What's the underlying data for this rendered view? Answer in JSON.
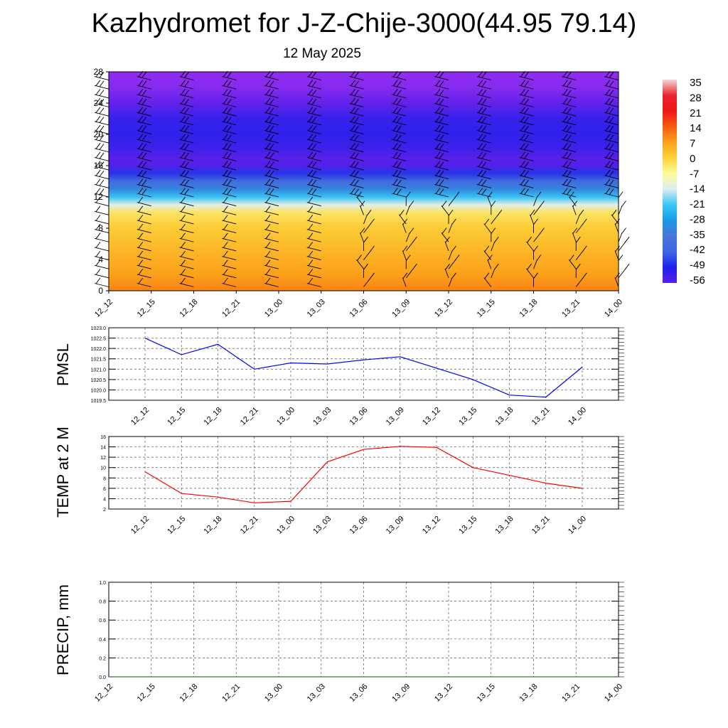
{
  "title": "Kazhydromet for J-Z-Chije-3000(44.95 79.14)",
  "subtitle": "12 May 2025",
  "chart_data": [
    {
      "type": "heatmap",
      "title": "",
      "x_labels": [
        "12_12",
        "12_15",
        "12_18",
        "12_21",
        "13_00",
        "13_03",
        "13_06",
        "13_09",
        "13_12",
        "13_15",
        "13_18",
        "13_21",
        "14_00"
      ],
      "y_ticks": [
        0,
        4,
        8,
        12,
        16,
        20,
        24,
        28
      ],
      "ylim": [
        0,
        28
      ],
      "colorbar_labels": [
        "35",
        "28",
        "21",
        "14",
        "7",
        "0",
        "-7",
        "-14",
        "-21",
        "-28",
        "-35",
        "-42",
        "-49",
        "-56"
      ],
      "colorbar_range": [
        -56,
        35
      ],
      "temperature_profile": [
        {
          "y": 0,
          "value": 10
        },
        {
          "y": 2,
          "value": 7
        },
        {
          "y": 4,
          "value": 5
        },
        {
          "y": 6,
          "value": 3
        },
        {
          "y": 8,
          "value": 1
        },
        {
          "y": 10,
          "value": -3
        },
        {
          "y": 11,
          "value": -13
        },
        {
          "y": 12,
          "value": -22
        },
        {
          "y": 13,
          "value": -32
        },
        {
          "y": 14,
          "value": -40
        },
        {
          "y": 15,
          "value": -47
        },
        {
          "y": 16,
          "value": -55
        },
        {
          "y": 17,
          "value": -56
        },
        {
          "y": 18,
          "value": -53
        },
        {
          "y": 20,
          "value": -51
        },
        {
          "y": 22,
          "value": -52
        },
        {
          "y": 24,
          "value": -57
        },
        {
          "y": 26,
          "value": -62
        },
        {
          "y": 28,
          "value": -63
        }
      ],
      "colors": {
        "c35": "#f7d5d5",
        "c28": "#e8232d",
        "c21": "#f01818",
        "c14": "#f85a10",
        "c7": "#fba01a",
        "c0": "#fdd23a",
        "cm7": "#fcfd99",
        "cm14": "#dcecf4",
        "cm21": "#39c8f6",
        "cm28": "#1999e6",
        "cm35": "#4876d8",
        "cm42": "#3f66e2",
        "cm49": "#1e22ec",
        "cm56": "#5a20e9",
        "cm63": "#8f2cf0"
      }
    },
    {
      "type": "line",
      "ylabel": "PMSL",
      "categories": [
        "12_12",
        "12_15",
        "12_18",
        "12_21",
        "13_00",
        "13_03",
        "13_06",
        "13_09",
        "13_12",
        "13_15",
        "13_18",
        "13_21",
        "14_00"
      ],
      "ylim": [
        1019.5,
        1023.0
      ],
      "y_ticks": [
        "1019.5",
        "1020.0",
        "1020.5",
        "1021.0",
        "1021.5",
        "1022.0",
        "1022.5",
        "1023.0"
      ],
      "series": [
        {
          "values": [
            1022.5,
            1021.7,
            1022.2,
            1021.0,
            1021.3,
            1021.25,
            1021.45,
            1021.6,
            1021.05,
            1020.5,
            1019.75,
            1019.65,
            1021.1
          ],
          "color": "#0000ff"
        }
      ],
      "grid": true
    },
    {
      "type": "line",
      "ylabel": "TEMP at 2 M",
      "categories": [
        "12_12",
        "12_15",
        "12_18",
        "12_21",
        "13_00",
        "13_03",
        "13_06",
        "13_09",
        "13_12",
        "13_15",
        "13_18",
        "13_21",
        "14_00"
      ],
      "ylim": [
        2,
        16
      ],
      "y_ticks": [
        "2",
        "4",
        "6",
        "8",
        "10",
        "12",
        "14",
        "16"
      ],
      "series": [
        {
          "values": [
            9.2,
            5.0,
            4.3,
            3.2,
            3.5,
            11.1,
            13.5,
            14.1,
            13.9,
            10.0,
            8.5,
            7.0,
            6.0
          ],
          "color": "#ff0000"
        }
      ],
      "grid": true
    },
    {
      "type": "bar",
      "ylabel": "PRECIP, mm",
      "categories": [
        "12_12",
        "12_15",
        "12_18",
        "12_21",
        "13_00",
        "13_03",
        "13_06",
        "13_09",
        "13_12",
        "13_15",
        "13_18",
        "13_21",
        "14_00"
      ],
      "ylim": [
        0,
        1.0
      ],
      "y_ticks": [
        "0.0",
        "0.2",
        "0.4",
        "0.6",
        "0.8",
        "1.0"
      ],
      "values": [
        0,
        0,
        0,
        0,
        0,
        0,
        0,
        0,
        0,
        0,
        0,
        0,
        0
      ],
      "grid": true
    }
  ]
}
